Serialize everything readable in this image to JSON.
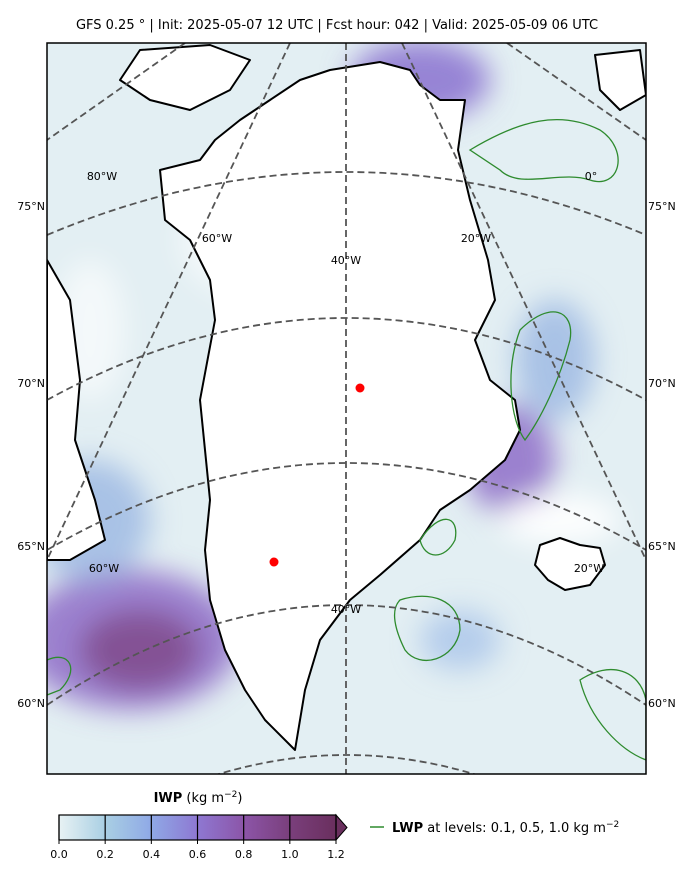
{
  "header": {
    "title": "GFS 0.25 °  |  Init: 2025-05-07 12 UTC  |  Fcst hour: 042  |  Valid: 2025-05-09 06 UTC"
  },
  "map": {
    "lat_labels_left": [
      "75°N",
      "70°N",
      "65°N",
      "60°N"
    ],
    "lat_labels_right": [
      "75°N",
      "70°N",
      "65°N",
      "60°N"
    ],
    "lon_labels_north": [
      "80°W",
      "60°W",
      "40°W",
      "20°W",
      "0°"
    ],
    "lon_labels_south": [
      "60°W",
      "40°W",
      "20°W"
    ]
  },
  "colorbar": {
    "title": {
      "name": "IWP",
      "unit": "(kg m",
      "exponent": "−2",
      "close": ")"
    },
    "ticks": [
      {
        "value": 0,
        "label": "0.0"
      },
      {
        "value": 0.2,
        "label": "0.2"
      },
      {
        "value": 0.4,
        "label": "0.4"
      },
      {
        "value": 0.6,
        "label": "0.6"
      },
      {
        "value": 0.8,
        "label": "0.8"
      },
      {
        "value": 1.0,
        "label": "1.0"
      },
      {
        "value": 1.2,
        "label": "1.2"
      }
    ],
    "colors": [
      "#e8f2f4",
      "#a9cfe3",
      "#8fa9e6",
      "#8e78d2",
      "#8c55a8",
      "#7a3f7c",
      "#6a2f5e"
    ]
  },
  "legend": {
    "name": "LWP",
    "text": "at levels: 0.1, 0.5, 1.0  kg m",
    "exponent": "−2"
  }
}
